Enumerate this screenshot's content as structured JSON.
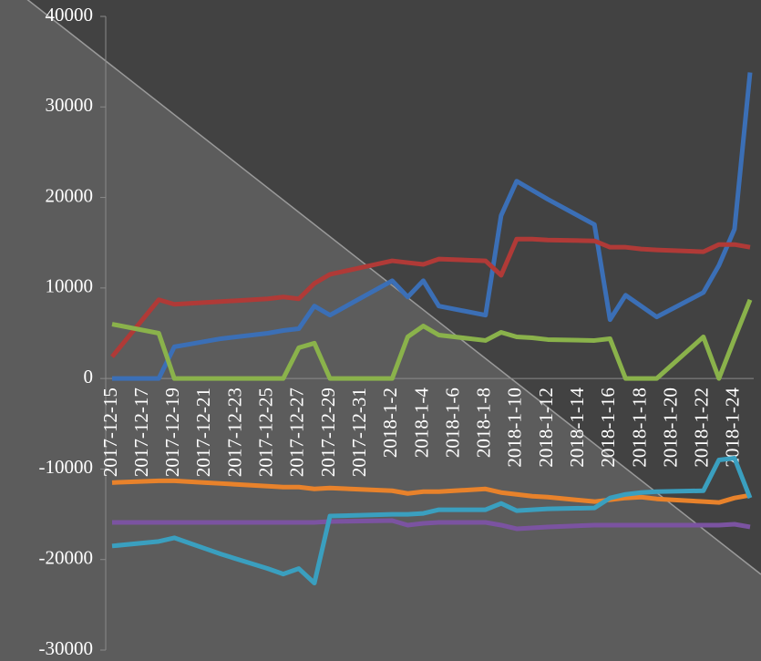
{
  "chart_data": {
    "type": "line",
    "x": [
      "2017-12-15",
      "2017-12-18",
      "2017-12-19",
      "2017-12-20",
      "2017-12-21",
      "2017-12-22",
      "2017-12-25",
      "2017-12-26",
      "2017-12-27",
      "2017-12-28",
      "2017-12-29",
      "2018-1-2",
      "2018-1-3",
      "2018-1-4",
      "2018-1-5",
      "2018-1-8",
      "2018-1-9",
      "2018-1-10",
      "2018-1-11",
      "2018-1-12",
      "2018-1-15",
      "2018-1-16",
      "2018-1-17",
      "2018-1-18",
      "2018-1-19",
      "2018-1-22",
      "2018-1-23",
      "2018-1-24",
      "2018-1-25"
    ],
    "xlim": [
      "2017-12-15",
      "2018-1-25"
    ],
    "xticks": [
      "2017-12-15",
      "2017-12-17",
      "2017-12-19",
      "2017-12-21",
      "2017-12-23",
      "2017-12-25",
      "2017-12-27",
      "2017-12-29",
      "2017-12-31",
      "2018-1-2",
      "2018-1-4",
      "2018-1-6",
      "2018-1-8",
      "2018-1-10",
      "2018-1-12",
      "2018-1-14",
      "2018-1-16",
      "2018-1-18",
      "2018-1-20",
      "2018-1-22",
      "2018-1-24"
    ],
    "ylim": [
      -30000,
      40000
    ],
    "yticks": [
      -30000,
      -20000,
      -10000,
      0,
      10000,
      20000,
      30000,
      40000
    ],
    "series": [
      {
        "color": "#3b6fb6",
        "values": [
          0,
          0,
          3500,
          3800,
          4100,
          4400,
          5000,
          5300,
          5500,
          8000,
          7000,
          10800,
          9000,
          10800,
          8000,
          7000,
          18000,
          21800,
          20800,
          19800,
          17000,
          6500,
          9200,
          8000,
          6800,
          9500,
          12500,
          16500,
          33800
        ]
      },
      {
        "color": "#b03a37",
        "values": [
          2400,
          8700,
          8200,
          8300,
          8400,
          8500,
          8800,
          9000,
          8800,
          10500,
          11500,
          13000,
          12800,
          12600,
          13200,
          13000,
          11400,
          15400,
          15400,
          15300,
          15200,
          14500,
          14500,
          14300,
          14200,
          14000,
          14800,
          14800,
          14500
        ]
      },
      {
        "color": "#8ab24b",
        "values": [
          6000,
          5000,
          0,
          0,
          0,
          0,
          0,
          0,
          3400,
          3900,
          0,
          0,
          4600,
          5800,
          4800,
          4200,
          5100,
          4600,
          4500,
          4300,
          4200,
          4400,
          0,
          0,
          0,
          4600,
          0,
          4400,
          8700
        ]
      },
      {
        "color": "#e8822b",
        "values": [
          -11500,
          -11300,
          -11300,
          -11400,
          -11500,
          -11600,
          -11900,
          -12000,
          -12000,
          -12200,
          -12100,
          -12400,
          -12700,
          -12500,
          -12500,
          -12200,
          -12600,
          -12800,
          -13000,
          -13100,
          -13600,
          -13400,
          -13200,
          -13100,
          -13300,
          -13600,
          -13700,
          -13200,
          -12900
        ]
      },
      {
        "color": "#7b53a1",
        "values": [
          -15900,
          -15900,
          -15900,
          -15900,
          -15900,
          -15900,
          -15900,
          -15900,
          -15900,
          -15900,
          -15800,
          -15700,
          -16200,
          -16000,
          -15900,
          -15900,
          -16200,
          -16600,
          -16500,
          -16400,
          -16200,
          -16200,
          -16200,
          -16200,
          -16200,
          -16200,
          -16200,
          -16100,
          -16400
        ]
      },
      {
        "color": "#3a9fbf",
        "values": [
          -18500,
          -18000,
          -17600,
          -18200,
          -18800,
          -19400,
          -21000,
          -21600,
          -21000,
          -22600,
          -15200,
          -15000,
          -15000,
          -14900,
          -14500,
          -14500,
          -13800,
          -14600,
          -14500,
          -14400,
          -14300,
          -13200,
          -12800,
          -12600,
          -12500,
          -12400,
          -9000,
          -8800,
          -13200
        ]
      }
    ]
  }
}
